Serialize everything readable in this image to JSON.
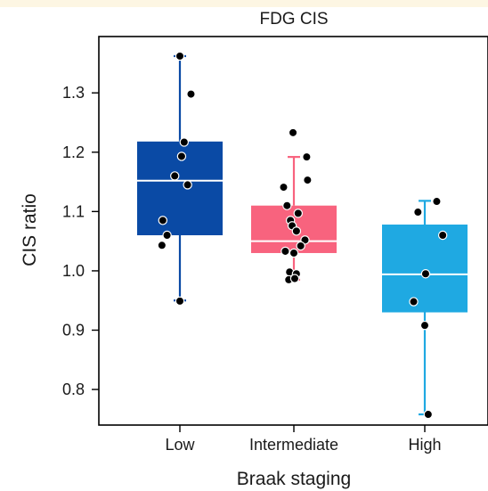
{
  "chart_data": {
    "type": "box",
    "title": "FDG CIS",
    "xlabel": "Braak staging",
    "ylabel": "CIS ratio",
    "ylim": [
      0.74,
      1.395
    ],
    "yticks": [
      0.8,
      0.9,
      1.0,
      1.1,
      1.2,
      1.3
    ],
    "ytick_labels": [
      "0.8",
      "0.9",
      "1.0",
      "1.1",
      "1.2",
      "1.3"
    ],
    "categories": [
      "Low",
      "Intermediate",
      "High"
    ],
    "colors": {
      "Low": "#0a4aa5",
      "Intermediate": "#f8637e",
      "High": "#1fa9e2",
      "points": "#000000",
      "median_line": "#ffffff",
      "background_band": "#fdf6e3"
    },
    "boxes": [
      {
        "category": "Low",
        "min": 0.95,
        "q1": 1.06,
        "median": 1.152,
        "q3": 1.218,
        "max": 1.362
      },
      {
        "category": "Intermediate",
        "min": 0.985,
        "q1": 1.03,
        "median": 1.05,
        "q3": 1.11,
        "max": 1.192
      },
      {
        "category": "High",
        "min": 0.758,
        "q1": 0.93,
        "median": 0.994,
        "q3": 1.078,
        "max": 1.118
      }
    ],
    "points": [
      {
        "category": "Low",
        "jitter": 0.0,
        "y": 1.362
      },
      {
        "category": "Low",
        "jitter": 0.26,
        "y": 1.298
      },
      {
        "category": "Low",
        "jitter": 0.1,
        "y": 1.217
      },
      {
        "category": "Low",
        "jitter": 0.04,
        "y": 1.193
      },
      {
        "category": "Low",
        "jitter": -0.12,
        "y": 1.16
      },
      {
        "category": "Low",
        "jitter": 0.18,
        "y": 1.145
      },
      {
        "category": "Low",
        "jitter": -0.4,
        "y": 1.085
      },
      {
        "category": "Low",
        "jitter": -0.3,
        "y": 1.06
      },
      {
        "category": "Low",
        "jitter": -0.42,
        "y": 1.043
      },
      {
        "category": "Low",
        "jitter": 0.0,
        "y": 0.949
      },
      {
        "category": "Intermediate",
        "jitter": -0.02,
        "y": 1.233
      },
      {
        "category": "Intermediate",
        "jitter": 0.3,
        "y": 1.192
      },
      {
        "category": "Intermediate",
        "jitter": 0.32,
        "y": 1.153
      },
      {
        "category": "Intermediate",
        "jitter": -0.24,
        "y": 1.141
      },
      {
        "category": "Intermediate",
        "jitter": -0.16,
        "y": 1.11
      },
      {
        "category": "Intermediate",
        "jitter": 0.1,
        "y": 1.097
      },
      {
        "category": "Intermediate",
        "jitter": -0.08,
        "y": 1.085
      },
      {
        "category": "Intermediate",
        "jitter": -0.04,
        "y": 1.076
      },
      {
        "category": "Intermediate",
        "jitter": 0.06,
        "y": 1.067
      },
      {
        "category": "Intermediate",
        "jitter": 0.26,
        "y": 1.052
      },
      {
        "category": "Intermediate",
        "jitter": 0.16,
        "y": 1.042
      },
      {
        "category": "Intermediate",
        "jitter": 0.0,
        "y": 1.03
      },
      {
        "category": "Intermediate",
        "jitter": -0.2,
        "y": 1.033
      },
      {
        "category": "Intermediate",
        "jitter": -0.1,
        "y": 0.998
      },
      {
        "category": "Intermediate",
        "jitter": 0.06,
        "y": 0.995
      },
      {
        "category": "Intermediate",
        "jitter": -0.12,
        "y": 0.985
      },
      {
        "category": "Intermediate",
        "jitter": 0.02,
        "y": 0.987
      },
      {
        "category": "High",
        "jitter": 0.28,
        "y": 1.117
      },
      {
        "category": "High",
        "jitter": -0.16,
        "y": 1.099
      },
      {
        "category": "High",
        "jitter": 0.42,
        "y": 1.06
      },
      {
        "category": "High",
        "jitter": 0.02,
        "y": 0.995
      },
      {
        "category": "High",
        "jitter": -0.26,
        "y": 0.948
      },
      {
        "category": "High",
        "jitter": 0.0,
        "y": 0.908
      },
      {
        "category": "High",
        "jitter": 0.08,
        "y": 0.758
      }
    ]
  }
}
